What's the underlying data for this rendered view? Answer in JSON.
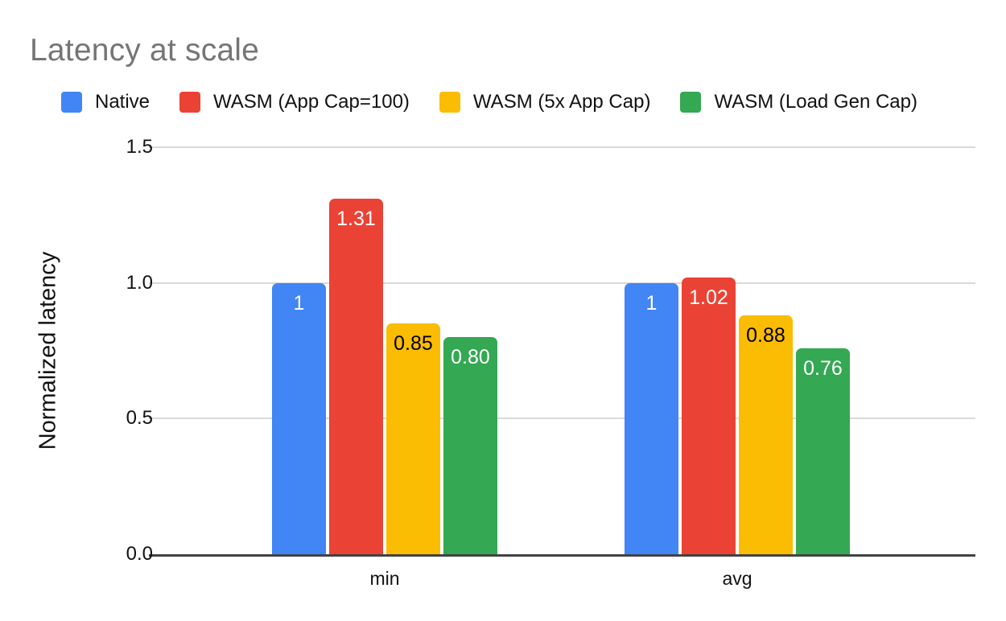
{
  "chart_data": {
    "type": "bar",
    "title": "Latency at scale",
    "ylabel": "Normalized latency",
    "xlabel": "",
    "categories": [
      "min",
      "avg"
    ],
    "series": [
      {
        "key": "native",
        "name": "Native",
        "color": "#4285F4",
        "label_color": "#FFFFFF",
        "values": [
          1,
          1
        ],
        "labels": [
          "1",
          "1"
        ]
      },
      {
        "key": "wasm-app-cap-100",
        "name": "WASM (App Cap=100)",
        "color": "#EA4335",
        "label_color": "#FFFFFF",
        "values": [
          1.31,
          1.02
        ],
        "labels": [
          "1.31",
          "1.02"
        ]
      },
      {
        "key": "wasm-5x-app-cap",
        "name": "WASM (5x App Cap)",
        "color": "#FBBC04",
        "label_color": "#000000",
        "values": [
          0.85,
          0.88
        ],
        "labels": [
          "0.85",
          "0.88"
        ]
      },
      {
        "key": "wasm-load-gen-cap",
        "name": "WASM (Load Gen Cap)",
        "color": "#34A853",
        "label_color": "#FFFFFF",
        "values": [
          0.8,
          0.76
        ],
        "labels": [
          "0.80",
          "0.76"
        ]
      }
    ],
    "ylim": [
      0,
      1.5
    ],
    "yticks": [
      "0.0",
      "0.5",
      "1.0",
      "1.5"
    ],
    "ytick_values": [
      0,
      0.5,
      1,
      1.5
    ],
    "grid": true,
    "legend_position": "top",
    "styles": {
      "title_color": "#757575",
      "text_color": "#111111",
      "gridline_color": "#DADADA",
      "axis_line_color": "#424242",
      "background": "#FFFFFF"
    }
  }
}
